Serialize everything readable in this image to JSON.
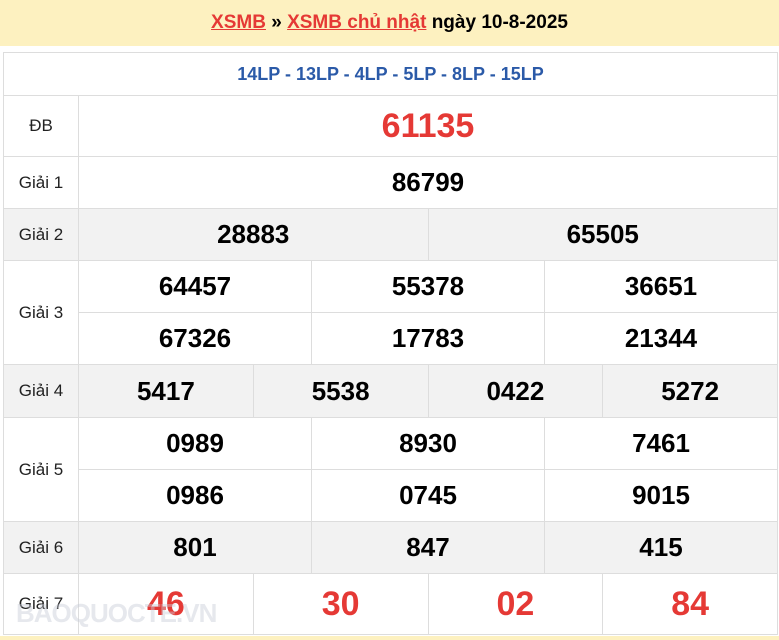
{
  "header": {
    "link1": "XSMB",
    "sep": " » ",
    "link2": "XSMB chủ nhật",
    "date_text": " ngày 10-8-2025"
  },
  "codes": "14LP - 13LP - 4LP - 5LP - 8LP - 15LP",
  "prizes": {
    "db": {
      "label": "ĐB",
      "numbers": [
        "61135"
      ]
    },
    "g1": {
      "label": "Giải 1",
      "numbers": [
        "86799"
      ]
    },
    "g2": {
      "label": "Giải 2",
      "numbers": [
        "28883",
        "65505"
      ]
    },
    "g3": {
      "label": "Giải 3",
      "numbers": [
        "64457",
        "55378",
        "36651",
        "67326",
        "17783",
        "21344"
      ]
    },
    "g4": {
      "label": "Giải 4",
      "numbers": [
        "5417",
        "5538",
        "0422",
        "5272"
      ]
    },
    "g5": {
      "label": "Giải 5",
      "numbers": [
        "0989",
        "8930",
        "7461",
        "0986",
        "0745",
        "9015"
      ]
    },
    "g6": {
      "label": "Giải 6",
      "numbers": [
        "801",
        "847",
        "415"
      ]
    },
    "g7": {
      "label": "Giải 7",
      "numbers": [
        "46",
        "30",
        "02",
        "84"
      ]
    }
  },
  "watermark": "BAOQUOCTE.VN",
  "colors": {
    "red": "#e53935",
    "blue": "#2b5aa8",
    "header_bg": "#fdf1c0"
  }
}
